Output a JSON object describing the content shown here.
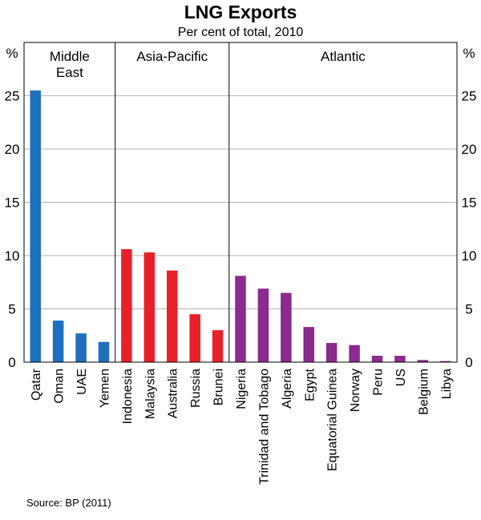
{
  "chart_data": {
    "type": "bar",
    "title": "LNG Exports",
    "subtitle": "Per cent of total, 2010",
    "ylabel_left": "%",
    "ylabel_right": "%",
    "ylim": [
      0,
      30
    ],
    "yticks": [
      0,
      5,
      10,
      15,
      20,
      25
    ],
    "grid": true,
    "source": "Source: BP (2011)",
    "groups": [
      {
        "name": [
          "Middle",
          "East"
        ],
        "color": "#1f6fbf",
        "start": 0,
        "end": 3
      },
      {
        "name": [
          "Asia-Pacific"
        ],
        "color": "#e8202a",
        "start": 4,
        "end": 8
      },
      {
        "name": [
          "Atlantic"
        ],
        "color": "#8b2a8f",
        "start": 9,
        "end": 18
      }
    ],
    "categories": [
      "Qatar",
      "Oman",
      "UAE",
      "Yemen",
      "Indonesia",
      "Malaysia",
      "Australia",
      "Russia",
      "Brunei",
      "Nigeria",
      "Trinidad and Tobago",
      "Algeria",
      "Egypt",
      "Equatorial Guinea",
      "Norway",
      "Peru",
      "US",
      "Belgium",
      "Libya"
    ],
    "values": [
      25.5,
      3.9,
      2.7,
      1.9,
      10.6,
      10.3,
      8.6,
      4.5,
      3.0,
      8.1,
      6.9,
      6.5,
      3.3,
      1.8,
      1.6,
      0.6,
      0.6,
      0.2,
      0.1
    ]
  }
}
